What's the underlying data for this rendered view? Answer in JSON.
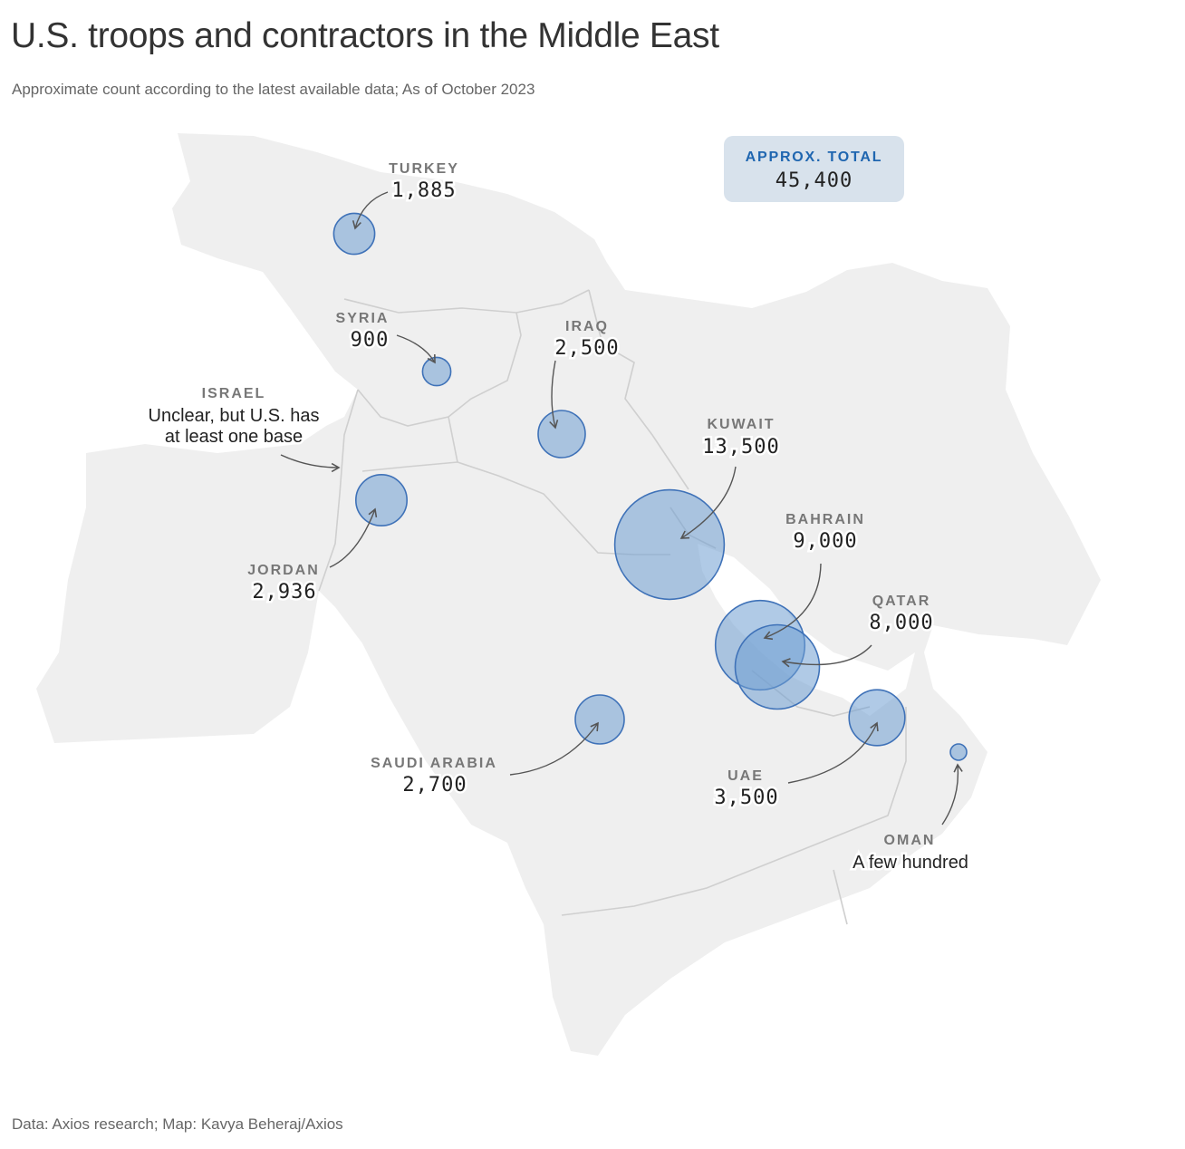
{
  "title": "U.S. troops and contractors in the Middle East",
  "subtitle": "Approximate count according to the latest available data; As of October 2023",
  "footer": "Data: Axios research; Map: Kavya Beheraj/Axios",
  "total": {
    "label": "APPROX. TOTAL",
    "value": "45,400"
  },
  "colors": {
    "bubble_fill": "#6f9ed1",
    "bubble_stroke": "#3f72b8",
    "land": "#efefef",
    "border": "#cfcfcf",
    "accent": "#1f66b0"
  },
  "chart_data": {
    "type": "proportional-symbol-map",
    "title": "U.S. troops and contractors in the Middle East",
    "units": "approximate count",
    "total": 45400,
    "countries": [
      {
        "key": "turkey",
        "name": "TURKEY",
        "label": "1,885",
        "value": 1885
      },
      {
        "key": "syria",
        "name": "SYRIA",
        "label": "900",
        "value": 900
      },
      {
        "key": "iraq",
        "name": "IRAQ",
        "label": "2,500",
        "value": 2500
      },
      {
        "key": "israel",
        "name": "ISRAEL",
        "note_lines": [
          "Unclear, but U.S. has",
          "at least one base"
        ],
        "value": null
      },
      {
        "key": "jordan",
        "name": "JORDAN",
        "label": "2,936",
        "value": 2936
      },
      {
        "key": "kuwait",
        "name": "KUWAIT",
        "label": "13,500",
        "value": 13500
      },
      {
        "key": "bahrain",
        "name": "BAHRAIN",
        "label": "9,000",
        "value": 9000
      },
      {
        "key": "qatar",
        "name": "QATAR",
        "label": "8,000",
        "value": 8000
      },
      {
        "key": "saudi_arabia",
        "name": "SAUDI ARABIA",
        "label": "2,700",
        "value": 2700
      },
      {
        "key": "uae",
        "name": "UAE",
        "label": "3,500",
        "value": 3500
      },
      {
        "key": "oman",
        "name": "OMAN",
        "note_lines": [
          "A few hundred"
        ],
        "value": 200
      }
    ]
  }
}
